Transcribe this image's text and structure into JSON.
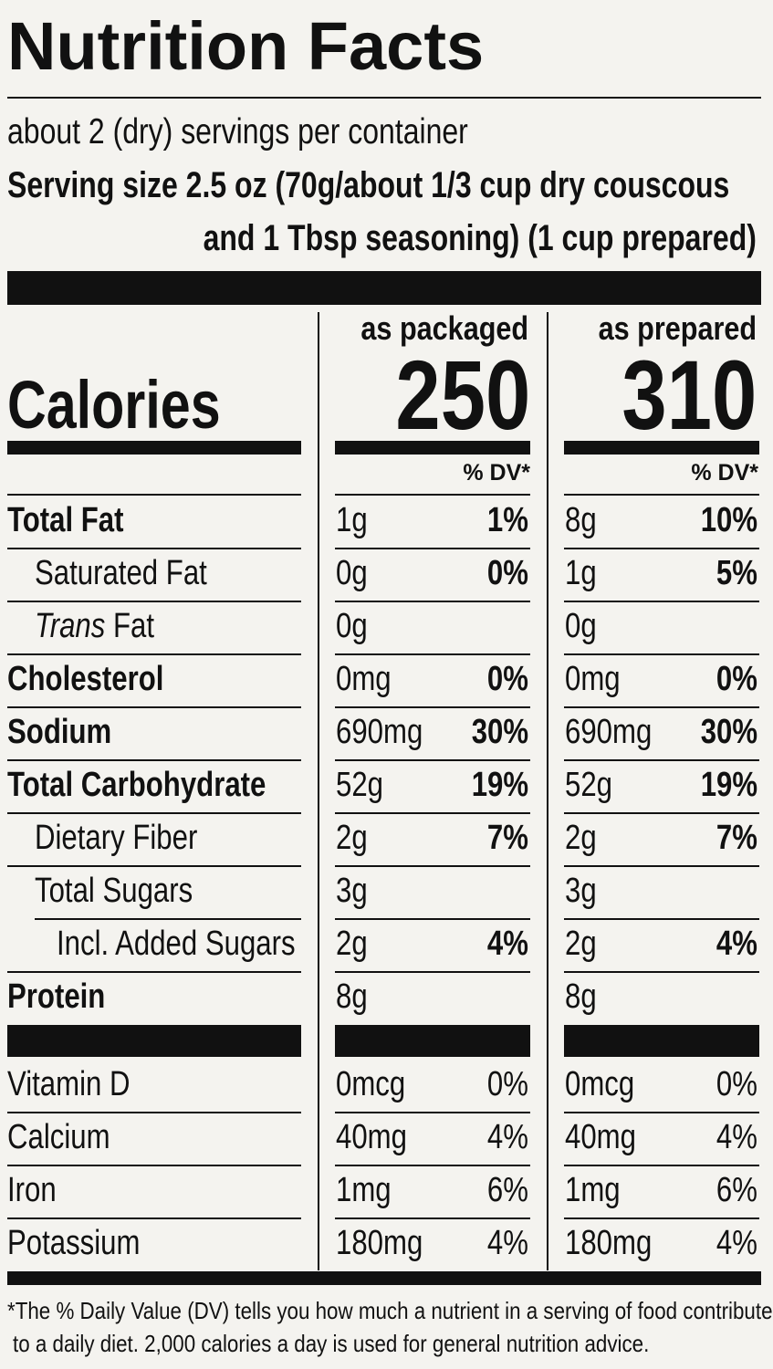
{
  "title": "Nutrition Facts",
  "servings_per_container": "about 2 (dry) servings per container",
  "serving_size_line1": "Serving size 2.5 oz (70g/about 1/3 cup dry couscous",
  "serving_size_line2": "and 1 Tbsp seasoning) (1 cup prepared)",
  "columns": [
    {
      "header": "as packaged",
      "calories": "250",
      "dv_header": "% DV*"
    },
    {
      "header": "as prepared",
      "calories": "310",
      "dv_header": "% DV*"
    }
  ],
  "calories_label": "Calories",
  "nutrients": [
    {
      "label": "Total Fat",
      "packaged_amount": "1g",
      "packaged_dv": "1%",
      "prepared_amount": "8g",
      "prepared_dv": "10%"
    },
    {
      "label": "Saturated Fat",
      "packaged_amount": "0g",
      "packaged_dv": "0%",
      "prepared_amount": "1g",
      "prepared_dv": "5%"
    },
    {
      "label_italic": "Trans",
      "label": " Fat",
      "packaged_amount": "0g",
      "packaged_dv": "",
      "prepared_amount": "0g",
      "prepared_dv": ""
    },
    {
      "label": "Cholesterol",
      "packaged_amount": "0mg",
      "packaged_dv": "0%",
      "prepared_amount": "0mg",
      "prepared_dv": "0%"
    },
    {
      "label": "Sodium",
      "packaged_amount": "690mg",
      "packaged_dv": "30%",
      "prepared_amount": "690mg",
      "prepared_dv": "30%"
    },
    {
      "label": "Total Carbohydrate",
      "packaged_amount": "52g",
      "packaged_dv": "19%",
      "prepared_amount": "52g",
      "prepared_dv": "19%"
    },
    {
      "label": "Dietary Fiber",
      "packaged_amount": "2g",
      "packaged_dv": "7%",
      "prepared_amount": "2g",
      "prepared_dv": "7%"
    },
    {
      "label": "Total Sugars",
      "packaged_amount": "3g",
      "packaged_dv": "",
      "prepared_amount": "3g",
      "prepared_dv": ""
    },
    {
      "label": "Incl. Added Sugars",
      "packaged_amount": "2g",
      "packaged_dv": "4%",
      "prepared_amount": "2g",
      "prepared_dv": "4%"
    },
    {
      "label": "Protein",
      "packaged_amount": "8g",
      "packaged_dv": "",
      "prepared_amount": "8g",
      "prepared_dv": ""
    }
  ],
  "vitamins": [
    {
      "label": "Vitamin D",
      "packaged_amount": "0mcg",
      "packaged_dv": "0%",
      "prepared_amount": "0mcg",
      "prepared_dv": "0%"
    },
    {
      "label": "Calcium",
      "packaged_amount": "40mg",
      "packaged_dv": "4%",
      "prepared_amount": "40mg",
      "prepared_dv": "4%"
    },
    {
      "label": "Iron",
      "packaged_amount": "1mg",
      "packaged_dv": "6%",
      "prepared_amount": "1mg",
      "prepared_dv": "6%"
    },
    {
      "label": "Potassium",
      "packaged_amount": "180mg",
      "packaged_dv": "4%",
      "prepared_amount": "180mg",
      "prepared_dv": "4%"
    }
  ],
  "footnote_line1": "*The % Daily Value (DV) tells you how much a nutrient in a serving of food contributes",
  "footnote_line2": "to a daily diet. 2,000 calories a day is used for general nutrition advice."
}
